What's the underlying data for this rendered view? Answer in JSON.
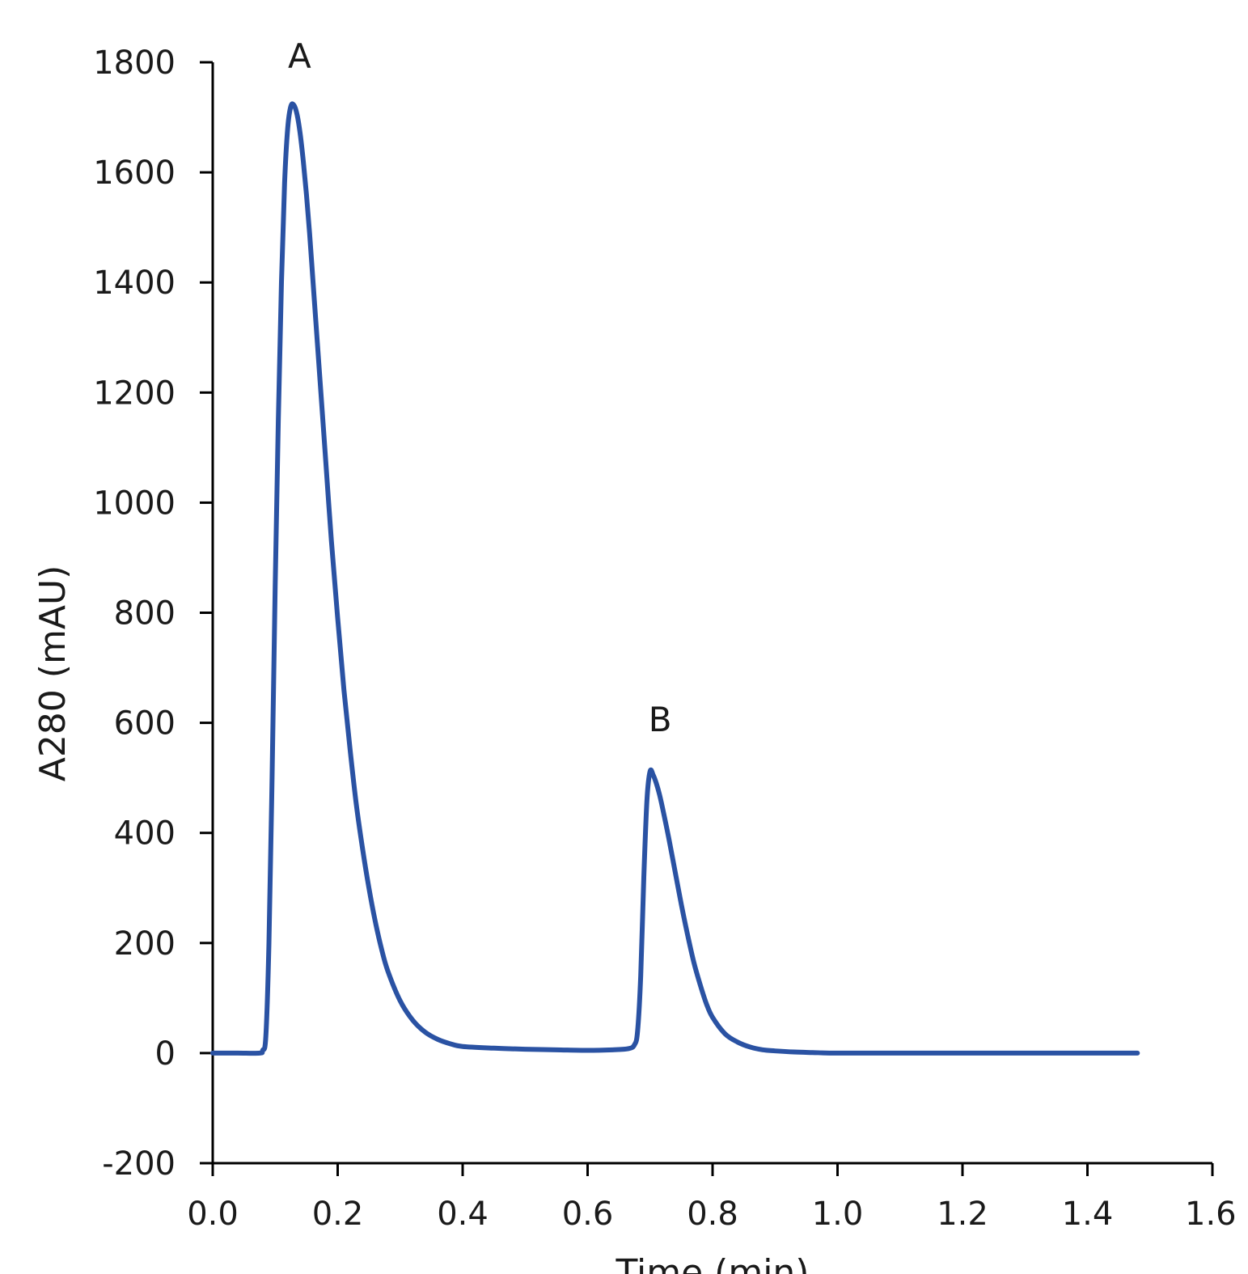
{
  "chart_data": {
    "type": "line",
    "title": "",
    "xlabel": "Time (min)",
    "ylabel": "A280 (mAU)",
    "xlim": [
      0,
      1.6
    ],
    "ylim": [
      -200,
      1800
    ],
    "x_ticks": [
      0.0,
      0.2,
      0.4,
      0.6,
      0.8,
      1.0,
      1.2,
      1.4,
      1.6
    ],
    "x_tick_labels": [
      "0.0",
      "0.2",
      "0.4",
      "0.6",
      "0.8",
      "1.0",
      "1.2",
      "1.4",
      "1.6"
    ],
    "y_ticks": [
      -200,
      0,
      200,
      400,
      600,
      800,
      1000,
      1200,
      1400,
      1600,
      1800
    ],
    "y_tick_labels": [
      "-200",
      "0",
      "200",
      "400",
      "600",
      "800",
      "1000",
      "1200",
      "1400",
      "1600",
      "1800"
    ],
    "grid": false,
    "legend": "none",
    "series_color": "#2a52a3",
    "series": [
      {
        "x": [
          0.0,
          0.04,
          0.075,
          0.08,
          0.085,
          0.09,
          0.095,
          0.1,
          0.105,
          0.11,
          0.115,
          0.12,
          0.125,
          0.13,
          0.135,
          0.14,
          0.145,
          0.15,
          0.155,
          0.16,
          0.165,
          0.17,
          0.175,
          0.18,
          0.19,
          0.2,
          0.21,
          0.22,
          0.23,
          0.24,
          0.25,
          0.26,
          0.27,
          0.28,
          0.3,
          0.32,
          0.34,
          0.36,
          0.38,
          0.4,
          0.45,
          0.5,
          0.55,
          0.6,
          0.64,
          0.665,
          0.675,
          0.68,
          0.685,
          0.69,
          0.695,
          0.7,
          0.705,
          0.71,
          0.715,
          0.72,
          0.73,
          0.74,
          0.75,
          0.76,
          0.77,
          0.78,
          0.79,
          0.8,
          0.82,
          0.84,
          0.86,
          0.88,
          0.9,
          0.93,
          0.96,
          1.0,
          1.1,
          1.2,
          1.3,
          1.4,
          1.48
        ],
        "y": [
          0,
          0,
          0,
          5,
          30,
          200,
          500,
          850,
          1150,
          1400,
          1580,
          1680,
          1720,
          1722,
          1705,
          1670,
          1620,
          1560,
          1490,
          1410,
          1330,
          1250,
          1170,
          1090,
          930,
          790,
          660,
          550,
          450,
          370,
          300,
          240,
          190,
          150,
          95,
          60,
          38,
          25,
          17,
          12,
          9,
          7,
          6,
          5,
          6,
          8,
          15,
          40,
          140,
          320,
          460,
          512,
          505,
          490,
          470,
          445,
          390,
          330,
          270,
          215,
          165,
          125,
          90,
          65,
          35,
          20,
          11,
          6,
          4,
          2,
          1,
          0,
          0,
          0,
          0,
          0,
          0
        ]
      }
    ],
    "annotations": [
      {
        "text": "A",
        "x": 0.139,
        "y": 1790
      },
      {
        "text": "B",
        "x": 0.716,
        "y": 585
      }
    ]
  }
}
